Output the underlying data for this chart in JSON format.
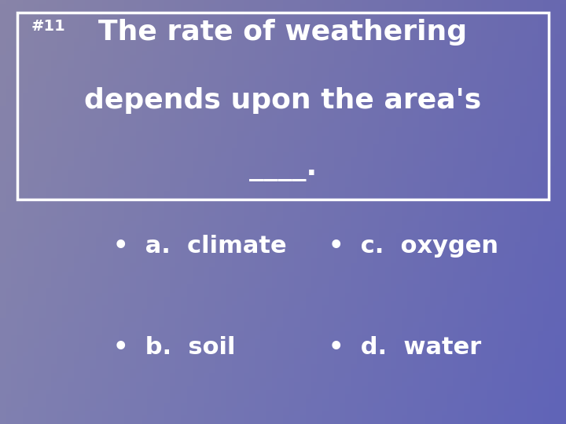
{
  "background_color": "#7b7baa",
  "box_edge_color": "#ffffff",
  "text_color": "#ffffff",
  "number_text": "#11",
  "title_line1": "The rate of weathering",
  "title_line2": "depends upon the area's",
  "title_line3": "____.",
  "option_a": "•  a.  climate",
  "option_b": "•  b.  soil",
  "option_c": "•  c.  oxygen",
  "option_d": "•  d.  water",
  "title_fontsize": 26,
  "number_fontsize": 14,
  "option_fontsize": 22,
  "fig_width": 7.2,
  "fig_height": 5.4,
  "dpi": 100
}
